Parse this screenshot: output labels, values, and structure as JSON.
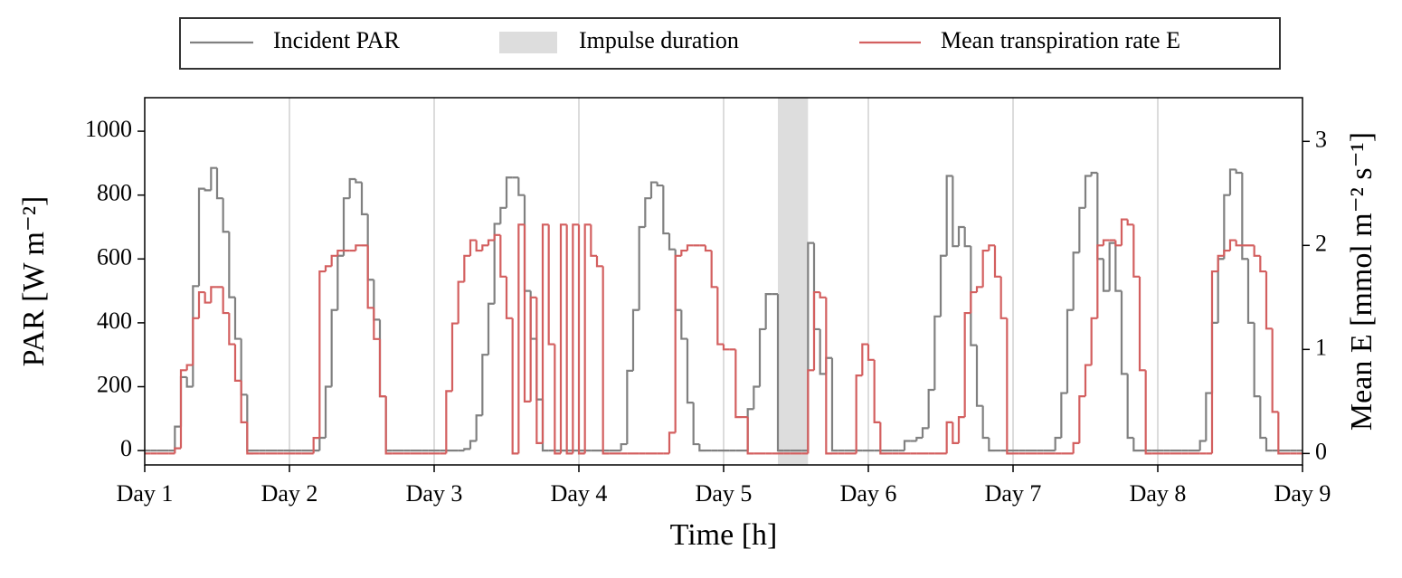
{
  "chart_data": {
    "type": "step",
    "x_label": "Time [h]",
    "y_label": "PAR [W m⁻²]",
    "y2_label": "Mean E [mmol m⁻² s⁻¹]",
    "xlim": [
      0,
      192
    ],
    "xticks": [
      {
        "value": 0,
        "label": "Day 1"
      },
      {
        "value": 24,
        "label": "Day 2"
      },
      {
        "value": 48,
        "label": "Day 3"
      },
      {
        "value": 72,
        "label": "Day 4"
      },
      {
        "value": 96,
        "label": "Day 5"
      },
      {
        "value": 120,
        "label": "Day 6"
      },
      {
        "value": 144,
        "label": "Day 7"
      },
      {
        "value": 168,
        "label": "Day 8"
      },
      {
        "value": 192,
        "label": "Day 9"
      }
    ],
    "ylim": [
      -45,
      1105
    ],
    "yticks": [
      0,
      200,
      400,
      600,
      800,
      1000
    ],
    "y2lim": [
      -0.11,
      3.42
    ],
    "y2ticks": [
      0,
      1,
      2,
      3
    ],
    "grid": "x",
    "legend": "top",
    "impulse": {
      "name": "Impulse duration",
      "start": 105,
      "end": 110,
      "color": "#dddddd"
    },
    "x": [
      0,
      1,
      2,
      3,
      4,
      5,
      6,
      7,
      8,
      9,
      10,
      11,
      12,
      13,
      14,
      15,
      16,
      17,
      18,
      19,
      20,
      21,
      22,
      23,
      24,
      25,
      26,
      27,
      28,
      29,
      30,
      31,
      32,
      33,
      34,
      35,
      36,
      37,
      38,
      39,
      40,
      41,
      42,
      43,
      44,
      45,
      46,
      47,
      48,
      49,
      50,
      51,
      52,
      53,
      54,
      55,
      56,
      57,
      58,
      59,
      60,
      61,
      62,
      63,
      64,
      65,
      66,
      67,
      68,
      69,
      70,
      71,
      72,
      73,
      74,
      75,
      76,
      77,
      78,
      79,
      80,
      81,
      82,
      83,
      84,
      85,
      86,
      87,
      88,
      89,
      90,
      91,
      92,
      93,
      94,
      95,
      96,
      97,
      98,
      99,
      100,
      101,
      102,
      103,
      104,
      105,
      106,
      107,
      108,
      109,
      110,
      111,
      112,
      113,
      114,
      115,
      116,
      117,
      118,
      119,
      120,
      121,
      122,
      123,
      124,
      125,
      126,
      127,
      128,
      129,
      130,
      131,
      132,
      133,
      134,
      135,
      136,
      137,
      138,
      139,
      140,
      141,
      142,
      143,
      144,
      145,
      146,
      147,
      148,
      149,
      150,
      151,
      152,
      153,
      154,
      155,
      156,
      157,
      158,
      159,
      160,
      161,
      162,
      163,
      164,
      165,
      166,
      167,
      168,
      169,
      170,
      171,
      172,
      173,
      174,
      175,
      176,
      177,
      178,
      179,
      180,
      181,
      182,
      183,
      184,
      185,
      186,
      187,
      188,
      189,
      190,
      191
    ],
    "series": [
      {
        "name": "Incident PAR",
        "color": "#808080",
        "values": [
          0,
          0,
          0,
          0,
          0,
          75,
          230,
          200,
          515,
          820,
          815,
          885,
          790,
          685,
          480,
          350,
          175,
          0,
          0,
          0,
          0,
          0,
          0,
          0,
          0,
          0,
          0,
          0,
          0,
          40,
          200,
          440,
          610,
          790,
          850,
          840,
          740,
          535,
          410,
          170,
          0,
          0,
          0,
          0,
          0,
          0,
          0,
          0,
          0,
          0,
          0,
          0,
          0,
          5,
          30,
          110,
          300,
          460,
          710,
          760,
          855,
          855,
          800,
          500,
          350,
          160,
          0,
          0,
          0,
          0,
          0,
          0,
          0,
          0,
          0,
          0,
          0,
          0,
          0,
          20,
          250,
          440,
          700,
          790,
          840,
          830,
          680,
          630,
          440,
          350,
          150,
          20,
          0,
          0,
          0,
          0,
          0,
          0,
          0,
          0,
          130,
          200,
          380,
          490,
          490,
          0,
          0,
          0,
          0,
          0,
          650,
          380,
          240,
          290,
          0,
          0,
          0,
          0,
          0,
          0,
          0,
          0,
          0,
          0,
          0,
          0,
          30,
          30,
          40,
          70,
          190,
          420,
          610,
          860,
          640,
          700,
          640,
          330,
          140,
          40,
          0,
          0,
          0,
          0,
          0,
          0,
          0,
          0,
          0,
          0,
          0,
          40,
          180,
          440,
          620,
          760,
          860,
          870,
          600,
          500,
          650,
          500,
          240,
          40,
          0,
          0,
          0,
          0,
          0,
          0,
          0,
          0,
          0,
          0,
          0,
          30,
          180,
          400,
          600,
          800,
          880,
          870,
          600,
          400,
          170,
          40,
          0,
          0,
          0,
          0,
          0,
          0
        ]
      },
      {
        "name": "Mean transpiration rate E",
        "color": "#d35f5f",
        "axis": "y2",
        "values": [
          0,
          0,
          0,
          0,
          0,
          0.05,
          0.8,
          0.85,
          1.3,
          1.55,
          1.45,
          1.6,
          1.6,
          1.35,
          1.05,
          0.7,
          0.3,
          0,
          0,
          0,
          0,
          0,
          0,
          0,
          0,
          0,
          0,
          0,
          0.15,
          1.75,
          1.8,
          1.9,
          1.95,
          1.95,
          1.95,
          2.0,
          2.0,
          1.4,
          1.1,
          0.55,
          0,
          0,
          0,
          0,
          0,
          0,
          0,
          0,
          0,
          0,
          0.6,
          1.25,
          1.65,
          1.9,
          2.05,
          1.95,
          2.0,
          2.05,
          2.1,
          1.7,
          1.3,
          0,
          2.2,
          0.5,
          1.5,
          0.1,
          2.2,
          1.05,
          0,
          2.2,
          0,
          2.2,
          0,
          2.2,
          1.9,
          1.8,
          0,
          0,
          0,
          0,
          0,
          0,
          0,
          0,
          0,
          0,
          0,
          0.2,
          1.9,
          1.95,
          2.0,
          2.0,
          2.0,
          1.95,
          1.6,
          1.05,
          1.0,
          1.0,
          0.35,
          0.35,
          0,
          0,
          0,
          0,
          0,
          0,
          0,
          0,
          0,
          0,
          0.8,
          1.55,
          1.5,
          0,
          0,
          0,
          0,
          0,
          0.75,
          1.05,
          0.9,
          0.3,
          0,
          0,
          0,
          0,
          0,
          0,
          0,
          0,
          0,
          0,
          0,
          0.3,
          0.1,
          0.35,
          1.35,
          1.55,
          1.6,
          1.95,
          2.0,
          1.7,
          1.3,
          0,
          0,
          0,
          0,
          0,
          0,
          0,
          0,
          0,
          0,
          0,
          0.1,
          0.55,
          0.85,
          1.3,
          2.0,
          2.05,
          2.05,
          2.0,
          2.25,
          2.2,
          1.7,
          0.8,
          0,
          0,
          0,
          0,
          0,
          0,
          0,
          0,
          0,
          0,
          0,
          1.75,
          1.9,
          1.95,
          2.05,
          2.0,
          2.0,
          2.0,
          1.9,
          1.75,
          1.2,
          0.4,
          0,
          0,
          0,
          0
        ]
      }
    ]
  }
}
